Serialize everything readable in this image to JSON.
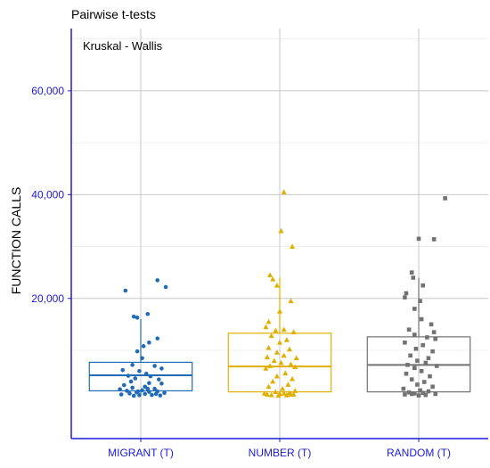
{
  "chart_data": {
    "type": "boxplot",
    "title": "Pairwise t-tests",
    "annotation": "Kruskal - Wallis",
    "ylabel": "FUNCTION CALLS",
    "xlabel": "",
    "ylim": [
      -7000,
      72000
    ],
    "y_ticks": [
      20000,
      40000,
      60000
    ],
    "y_tick_labels": [
      "20,000",
      "40,000",
      "60,000"
    ],
    "grid": true,
    "legend": "none",
    "axis_color": "#1a1adb",
    "grid_color": "#c7c7c7",
    "categories": [
      "MIGRANT (T)",
      "NUMBER (T)",
      "RANDOM (T)"
    ],
    "series": [
      {
        "category": "MIGRANT (T)",
        "color": "#1f6bb5",
        "marker": "circle",
        "box": {
          "whisker_low": 1500,
          "q1": 2200,
          "median": 5200,
          "q3": 7700,
          "whisker_high": 16000
        },
        "points": [
          [
            -0.22,
            21500
          ],
          [
            0.24,
            23500
          ],
          [
            0.36,
            22200
          ],
          [
            0.1,
            17000
          ],
          [
            -0.1,
            16500
          ],
          [
            -0.05,
            16300
          ],
          [
            0.12,
            11500
          ],
          [
            0.04,
            10800
          ],
          [
            0.24,
            12300
          ],
          [
            -0.05,
            9800
          ],
          [
            0.02,
            8500
          ],
          [
            -0.12,
            7200
          ],
          [
            0.2,
            7000
          ],
          [
            0.3,
            6500
          ],
          [
            -0.02,
            6000
          ],
          [
            -0.26,
            6200
          ],
          [
            0.08,
            5500
          ],
          [
            -0.18,
            5100
          ],
          [
            0.14,
            5000
          ],
          [
            -0.08,
            4600
          ],
          [
            0.26,
            4400
          ],
          [
            -0.14,
            4000
          ],
          [
            0.12,
            3700
          ],
          [
            0.3,
            3600
          ],
          [
            -0.24,
            3300
          ],
          [
            0.06,
            3000
          ],
          [
            -0.12,
            2800
          ],
          [
            0.2,
            2600
          ],
          [
            -0.3,
            2500
          ],
          [
            0.02,
            2300
          ],
          [
            -0.2,
            2200
          ],
          [
            0.24,
            2100
          ],
          [
            0.12,
            2000
          ],
          [
            -0.06,
            1900
          ],
          [
            0.34,
            1800
          ],
          [
            -0.16,
            1700
          ],
          [
            0.06,
            1600
          ],
          [
            -0.28,
            1500
          ],
          [
            0.16,
            1400
          ],
          [
            -0.02,
            1350
          ],
          [
            0.28,
            1300
          ],
          [
            -0.1,
            1250
          ],
          [
            0.22,
            1600
          ],
          [
            -0.04,
            2100
          ],
          [
            0.1,
            2600
          ]
        ]
      },
      {
        "category": "NUMBER (T)",
        "color": "#e0b000",
        "marker": "triangle",
        "box": {
          "whisker_low": 1500,
          "q1": 2000,
          "median": 6900,
          "q3": 13300,
          "whisker_high": 24000
        },
        "points": [
          [
            0.06,
            40500
          ],
          [
            0.02,
            33000
          ],
          [
            0.18,
            30000
          ],
          [
            -0.14,
            24500
          ],
          [
            -0.1,
            23700
          ],
          [
            -0.04,
            22500
          ],
          [
            0.16,
            19500
          ],
          [
            0.0,
            17500
          ],
          [
            -0.16,
            15500
          ],
          [
            -0.2,
            14500
          ],
          [
            0.06,
            14000
          ],
          [
            -0.06,
            13800
          ],
          [
            0.2,
            13500
          ],
          [
            -0.12,
            12800
          ],
          [
            0.1,
            12000
          ],
          [
            0.0,
            11500
          ],
          [
            -0.16,
            10500
          ],
          [
            0.14,
            10200
          ],
          [
            -0.04,
            9600
          ],
          [
            0.06,
            9000
          ],
          [
            -0.18,
            8700
          ],
          [
            0.24,
            8500
          ],
          [
            -0.08,
            8000
          ],
          [
            0.02,
            7600
          ],
          [
            0.16,
            7300
          ],
          [
            -0.14,
            7000
          ],
          [
            0.22,
            6800
          ],
          [
            -0.2,
            6500
          ],
          [
            0.08,
            5600
          ],
          [
            -0.04,
            5000
          ],
          [
            0.18,
            4500
          ],
          [
            -0.1,
            4000
          ],
          [
            0.12,
            3400
          ],
          [
            -0.16,
            3000
          ],
          [
            0.04,
            2600
          ],
          [
            0.22,
            2200
          ],
          [
            -0.06,
            2000
          ],
          [
            0.14,
            1800
          ],
          [
            -0.22,
            1700
          ],
          [
            0.0,
            1600
          ],
          [
            0.2,
            1500
          ],
          [
            -0.12,
            1400
          ],
          [
            0.1,
            1350
          ],
          [
            -0.02,
            1300
          ],
          [
            0.16,
            1500
          ],
          [
            -0.18,
            1500
          ],
          [
            0.06,
            1700
          ]
        ]
      },
      {
        "category": "RANDOM (T)",
        "color": "#727272",
        "marker": "square",
        "box": {
          "whisker_low": 1400,
          "q1": 2000,
          "median": 7200,
          "q3": 12600,
          "whisker_high": 24000
        },
        "points": [
          [
            0.38,
            39300
          ],
          [
            0.0,
            31500
          ],
          [
            0.22,
            31400
          ],
          [
            -0.1,
            25000
          ],
          [
            -0.08,
            24000
          ],
          [
            0.06,
            22500
          ],
          [
            -0.18,
            21000
          ],
          [
            -0.2,
            20200
          ],
          [
            0.02,
            19500
          ],
          [
            -0.06,
            18000
          ],
          [
            0.04,
            16000
          ],
          [
            0.18,
            15000
          ],
          [
            -0.14,
            14000
          ],
          [
            0.22,
            13500
          ],
          [
            -0.06,
            13000
          ],
          [
            0.12,
            12500
          ],
          [
            0.24,
            12200
          ],
          [
            -0.2,
            11500
          ],
          [
            0.06,
            11000
          ],
          [
            -0.04,
            10300
          ],
          [
            0.2,
            9800
          ],
          [
            -0.12,
            9000
          ],
          [
            0.14,
            8500
          ],
          [
            -0.02,
            8000
          ],
          [
            0.1,
            7600
          ],
          [
            -0.16,
            7200
          ],
          [
            0.26,
            7000
          ],
          [
            -0.06,
            6600
          ],
          [
            0.04,
            6000
          ],
          [
            -0.18,
            5500
          ],
          [
            0.16,
            5000
          ],
          [
            -0.1,
            4400
          ],
          [
            0.08,
            3900
          ],
          [
            -0.02,
            3400
          ],
          [
            0.2,
            3000
          ],
          [
            -0.22,
            2600
          ],
          [
            0.02,
            2300
          ],
          [
            0.14,
            2100
          ],
          [
            -0.14,
            1900
          ],
          [
            0.06,
            1800
          ],
          [
            -0.06,
            1700
          ],
          [
            0.24,
            1600
          ],
          [
            -0.2,
            1500
          ],
          [
            0.1,
            1400
          ],
          [
            0.0,
            1300
          ],
          [
            -0.1,
            1600
          ]
        ]
      }
    ]
  }
}
